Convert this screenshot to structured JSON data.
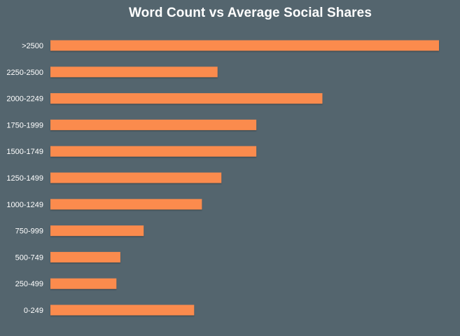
{
  "chart_data": {
    "type": "bar",
    "orientation": "horizontal",
    "title": "Word Count vs Average Social Shares",
    "xlabel": "",
    "ylabel": "",
    "categories": [
      ">2500",
      "2250-2500",
      "2000-2249",
      "1750-1999",
      "1500-1749",
      "1250-1499",
      "1000-1249",
      "750-999",
      "500-749",
      "250-499",
      "0-249"
    ],
    "values": [
      100,
      43,
      70,
      53,
      53,
      44,
      39,
      24,
      18,
      17,
      37
    ],
    "xlim": [
      0,
      100
    ],
    "value_unit": "relative length (longest bar = 100); no value axis is printed",
    "grid": false,
    "legend": "none",
    "colors": {
      "background": "#54656e",
      "bar": "#fb8b4d",
      "text": "#ffffff"
    }
  }
}
